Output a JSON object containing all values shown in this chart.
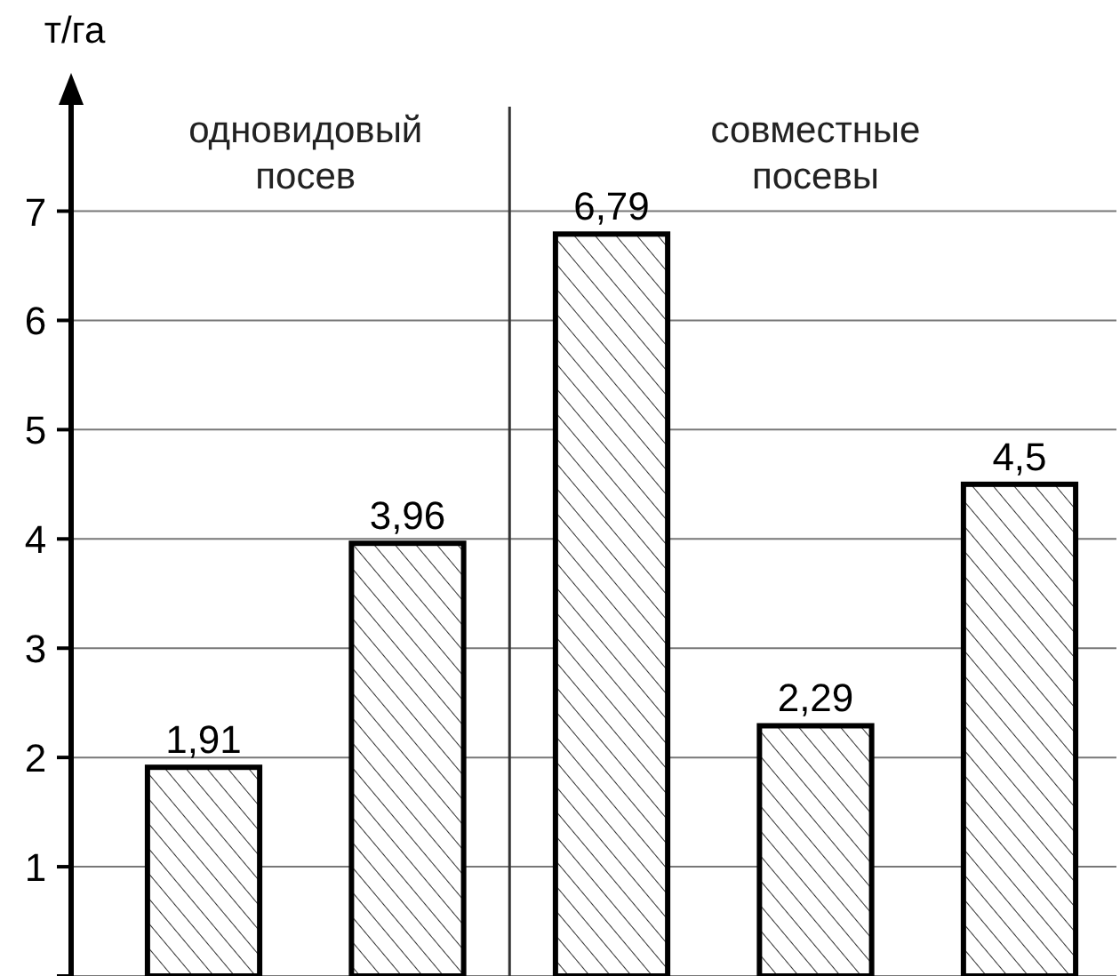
{
  "chart_data": {
    "type": "bar",
    "ylabel": "т/га",
    "categories": [
      null,
      null,
      null,
      null,
      null
    ],
    "values": [
      1.91,
      3.96,
      6.79,
      2.29,
      4.5
    ],
    "colors": [
      "#000000",
      "#000000",
      "#000000",
      "#000000",
      "#000000"
    ],
    "value_labels": [
      "1,91",
      "3,96",
      "6,79",
      "2,29",
      "4,5"
    ],
    "ylim": [
      0,
      8.2
    ],
    "yticks": [
      {
        "value": 0,
        "label": null
      },
      1,
      2,
      3,
      4,
      5,
      6,
      7
    ],
    "grid": "y",
    "annotations": [
      "одновидовый\nпосев",
      "совместные\nпосевы"
    ]
  }
}
